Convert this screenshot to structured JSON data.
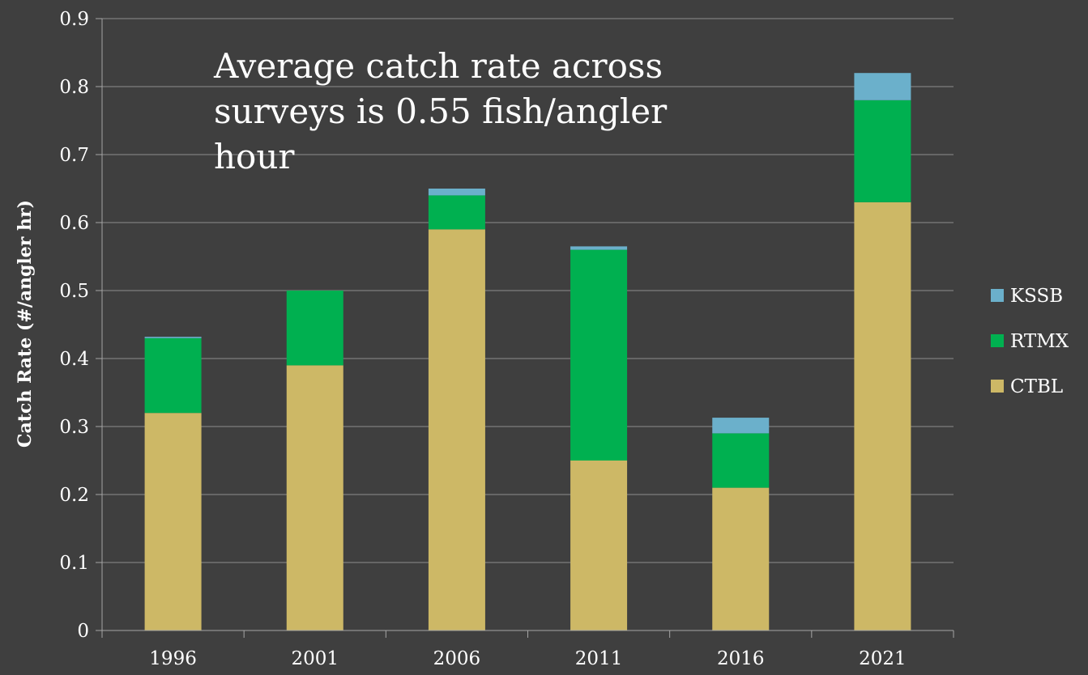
{
  "chart_data": {
    "type": "bar",
    "stacked": true,
    "title": "",
    "xlabel": "",
    "ylabel": "Catch Rate (#/angler hr)",
    "categories": [
      "1996",
      "2001",
      "2006",
      "2011",
      "2016",
      "2021"
    ],
    "series": [
      {
        "name": "CTBL",
        "color": "#cdb866",
        "values": [
          0.32,
          0.39,
          0.59,
          0.25,
          0.21,
          0.63
        ]
      },
      {
        "name": "RTMX",
        "color": "#00b050",
        "values": [
          0.11,
          0.11,
          0.05,
          0.31,
          0.08,
          0.15
        ]
      },
      {
        "name": "KSSB",
        "color": "#6bb0cb",
        "values": [
          0.002,
          0.0,
          0.01,
          0.005,
          0.023,
          0.04
        ]
      }
    ],
    "ylim": [
      0,
      0.9
    ],
    "yticks": [
      "0",
      "0.1",
      "0.2",
      "0.3",
      "0.4",
      "0.5",
      "0.6",
      "0.7",
      "0.8",
      "0.9"
    ],
    "grid": true,
    "legend_position": "right",
    "legend_order": [
      "KSSB",
      "RTMX",
      "CTBL"
    ],
    "annotation_lines": [
      "Average catch rate across",
      "surveys is 0.55 fish/angler",
      "hour"
    ]
  },
  "colors": {
    "background": "#3f3f3f",
    "gridline": "#8c8c8c",
    "axis": "#a6a6a6",
    "text": "#ffffff"
  }
}
